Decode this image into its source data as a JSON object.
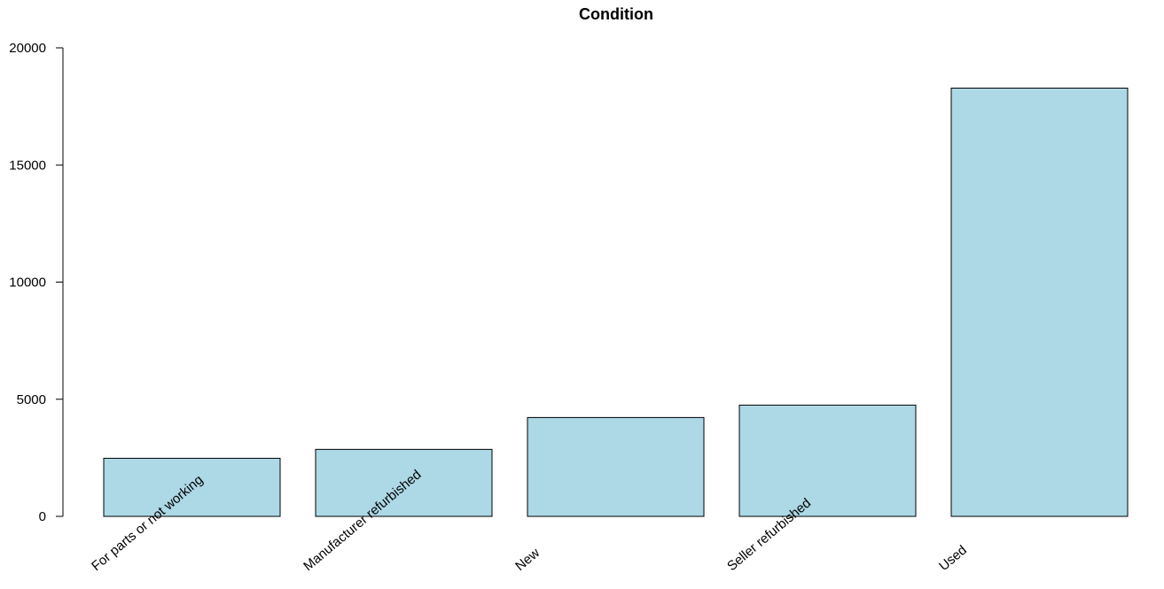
{
  "chart_data": {
    "type": "bar",
    "title": "Condition",
    "xlabel": "",
    "ylabel": "",
    "categories": [
      "For parts or not working",
      "Manufacturer refurbished",
      "New",
      "Seller refurbished",
      "Used"
    ],
    "values": [
      2480,
      2860,
      4220,
      4750,
      18280
    ],
    "ylim": [
      0,
      20000
    ],
    "yticks": [
      "0",
      "5000",
      "10000",
      "15000",
      "20000"
    ],
    "bar_color": "#add8e6",
    "grid": false,
    "legend": "none"
  }
}
